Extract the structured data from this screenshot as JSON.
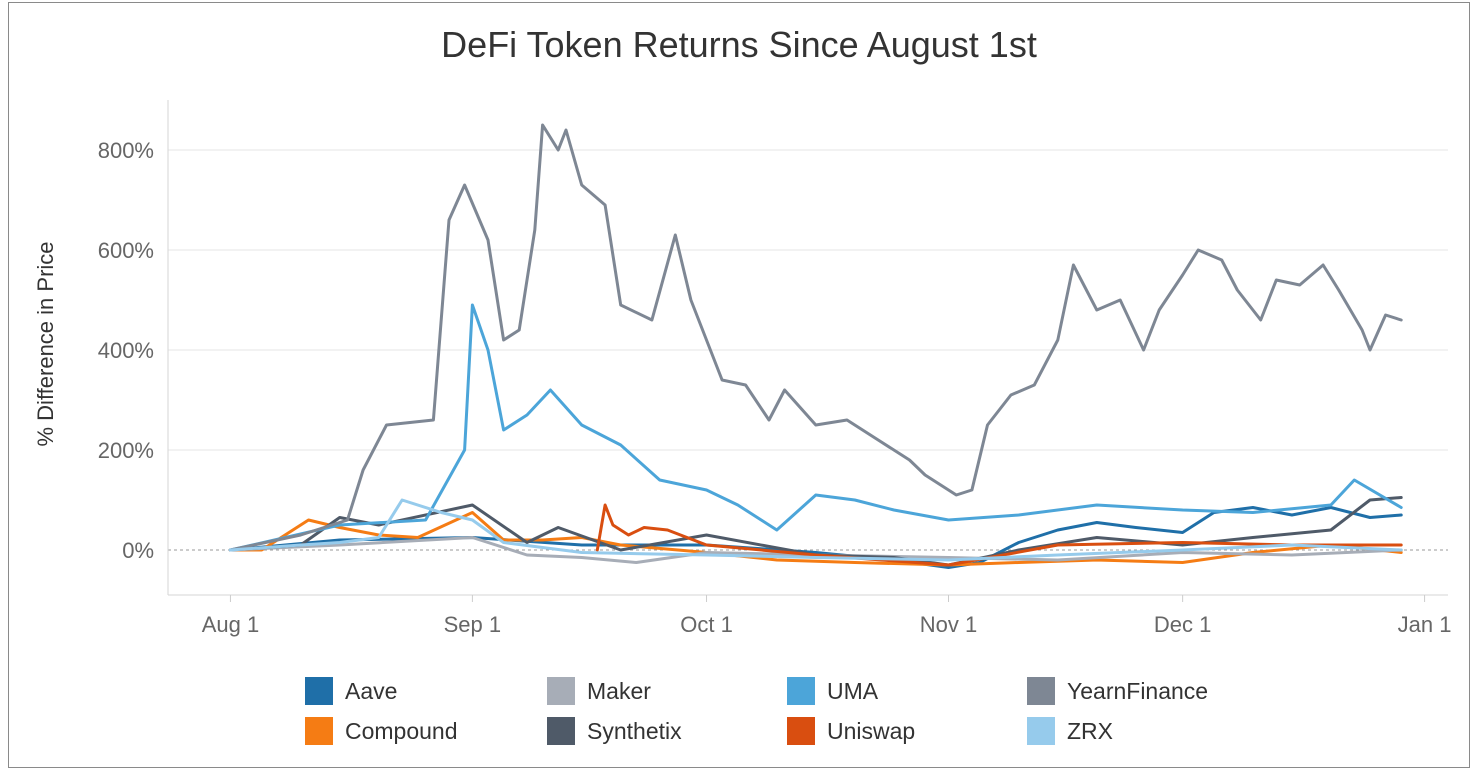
{
  "title": "DeFi Token Returns Since August 1st",
  "chart_data": {
    "type": "line",
    "title": "DeFi Token Returns Since August 1st",
    "ylabel": "% Difference in Price",
    "xlabel": "",
    "x_ticks": [
      "Aug 1",
      "Sep 1",
      "Oct 1",
      "Nov 1",
      "Dec 1",
      "Jan 1"
    ],
    "y_ticks": [
      "0%",
      "200%",
      "400%",
      "600%",
      "800%"
    ],
    "x_range": [
      "2020-07-24",
      "2021-01-04"
    ],
    "ylim": [
      -90,
      900
    ],
    "grid": "horizontal",
    "zero_line": "dashed",
    "legend_position": "bottom",
    "x_unit": "date",
    "series": [
      {
        "name": "Aave",
        "color": "#1f6fa8",
        "x": [
          "2020-08-01",
          "2020-08-15",
          "2020-09-01",
          "2020-09-15",
          "2020-10-01",
          "2020-10-15",
          "2020-10-25",
          "2020-11-01",
          "2020-11-05",
          "2020-11-10",
          "2020-11-15",
          "2020-11-20",
          "2020-11-25",
          "2020-12-01",
          "2020-12-05",
          "2020-12-10",
          "2020-12-15",
          "2020-12-20",
          "2020-12-25",
          "2020-12-29"
        ],
        "values": [
          0,
          20,
          25,
          10,
          10,
          -5,
          -20,
          -35,
          -25,
          15,
          40,
          55,
          45,
          35,
          75,
          85,
          70,
          85,
          65,
          70
        ]
      },
      {
        "name": "Compound",
        "color": "#f57c14",
        "x": [
          "2020-08-01",
          "2020-08-05",
          "2020-08-11",
          "2020-08-15",
          "2020-08-20",
          "2020-08-25",
          "2020-09-01",
          "2020-09-05",
          "2020-09-10",
          "2020-09-15",
          "2020-09-20",
          "2020-10-01",
          "2020-10-10",
          "2020-10-20",
          "2020-11-01",
          "2020-11-10",
          "2020-11-20",
          "2020-12-01",
          "2020-12-10",
          "2020-12-20",
          "2020-12-29"
        ],
        "values": [
          0,
          0,
          60,
          45,
          30,
          25,
          75,
          20,
          20,
          25,
          10,
          -5,
          -20,
          -25,
          -30,
          -25,
          -20,
          -25,
          -5,
          10,
          -5
        ]
      },
      {
        "name": "Maker",
        "color": "#a7adb7",
        "x": [
          "2020-08-01",
          "2020-08-15",
          "2020-09-01",
          "2020-09-08",
          "2020-09-15",
          "2020-09-22",
          "2020-10-01",
          "2020-10-15",
          "2020-11-01",
          "2020-11-15",
          "2020-12-01",
          "2020-12-15",
          "2020-12-29"
        ],
        "values": [
          0,
          10,
          25,
          -10,
          -15,
          -25,
          -5,
          -10,
          -15,
          -20,
          -5,
          -10,
          0
        ]
      },
      {
        "name": "Synthetix",
        "color": "#4f5a68",
        "x": [
          "2020-08-01",
          "2020-08-10",
          "2020-08-15",
          "2020-08-20",
          "2020-09-01",
          "2020-09-08",
          "2020-09-12",
          "2020-09-20",
          "2020-10-01",
          "2020-10-15",
          "2020-10-25",
          "2020-11-01",
          "2020-11-10",
          "2020-11-20",
          "2020-12-01",
          "2020-12-10",
          "2020-12-20",
          "2020-12-25",
          "2020-12-29"
        ],
        "values": [
          0,
          10,
          65,
          50,
          90,
          15,
          45,
          0,
          30,
          -10,
          -15,
          -30,
          0,
          25,
          10,
          25,
          40,
          100,
          105
        ]
      },
      {
        "name": "UMA",
        "color": "#4ca5d9",
        "x": [
          "2020-08-01",
          "2020-08-15",
          "2020-08-26",
          "2020-08-31",
          "2020-09-01",
          "2020-09-03",
          "2020-09-05",
          "2020-09-08",
          "2020-09-11",
          "2020-09-15",
          "2020-09-20",
          "2020-09-25",
          "2020-10-01",
          "2020-10-05",
          "2020-10-08",
          "2020-10-10",
          "2020-10-15",
          "2020-10-20",
          "2020-10-25",
          "2020-11-01",
          "2020-11-10",
          "2020-11-20",
          "2020-12-01",
          "2020-12-10",
          "2020-12-20",
          "2020-12-23",
          "2020-12-29"
        ],
        "values": [
          0,
          50,
          60,
          200,
          490,
          400,
          240,
          270,
          320,
          250,
          210,
          140,
          120,
          90,
          60,
          40,
          110,
          100,
          80,
          60,
          70,
          90,
          80,
          75,
          90,
          140,
          85
        ]
      },
      {
        "name": "Uniswap",
        "color": "#d94e10",
        "x": [
          "2020-09-17",
          "2020-09-18",
          "2020-09-19",
          "2020-09-21",
          "2020-09-23",
          "2020-09-26",
          "2020-10-01",
          "2020-10-15",
          "2020-11-01",
          "2020-11-15",
          "2020-12-01",
          "2020-12-15",
          "2020-12-29"
        ],
        "values": [
          0,
          90,
          50,
          30,
          45,
          40,
          10,
          -10,
          -30,
          10,
          15,
          10,
          10
        ]
      },
      {
        "name": "YearnFinance",
        "color": "#7e8794",
        "x": [
          "2020-08-01",
          "2020-08-10",
          "2020-08-16",
          "2020-08-18",
          "2020-08-21",
          "2020-08-27",
          "2020-08-29",
          "2020-08-31",
          "2020-09-03",
          "2020-09-05",
          "2020-09-07",
          "2020-09-09",
          "2020-09-10",
          "2020-09-12",
          "2020-09-13",
          "2020-09-15",
          "2020-09-18",
          "2020-09-20",
          "2020-09-24",
          "2020-09-27",
          "2020-09-29",
          "2020-10-03",
          "2020-10-06",
          "2020-10-09",
          "2020-10-11",
          "2020-10-15",
          "2020-10-19",
          "2020-10-23",
          "2020-10-27",
          "2020-10-29",
          "2020-10-31",
          "2020-11-02",
          "2020-11-04",
          "2020-11-06",
          "2020-11-09",
          "2020-11-12",
          "2020-11-15",
          "2020-11-17",
          "2020-11-20",
          "2020-11-23",
          "2020-11-26",
          "2020-11-28",
          "2020-12-01",
          "2020-12-03",
          "2020-12-06",
          "2020-12-08",
          "2020-12-11",
          "2020-12-13",
          "2020-12-16",
          "2020-12-19",
          "2020-12-21",
          "2020-12-24",
          "2020-12-25",
          "2020-12-27",
          "2020-12-29"
        ],
        "values": [
          0,
          30,
          60,
          160,
          250,
          260,
          660,
          730,
          620,
          420,
          440,
          640,
          850,
          800,
          840,
          730,
          690,
          490,
          460,
          630,
          500,
          340,
          330,
          260,
          320,
          250,
          260,
          220,
          180,
          150,
          130,
          110,
          120,
          250,
          310,
          330,
          420,
          570,
          480,
          500,
          400,
          480,
          550,
          600,
          580,
          520,
          460,
          540,
          530,
          570,
          520,
          440,
          400,
          470,
          460
        ]
      },
      {
        "name": "ZRX",
        "color": "#96cbec",
        "x": [
          "2020-08-01",
          "2020-08-10",
          "2020-08-15",
          "2020-08-20",
          "2020-08-23",
          "2020-08-28",
          "2020-09-01",
          "2020-09-05",
          "2020-09-10",
          "2020-09-15",
          "2020-10-01",
          "2020-10-15",
          "2020-11-01",
          "2020-11-15",
          "2020-12-01",
          "2020-12-15",
          "2020-12-29"
        ],
        "values": [
          0,
          10,
          15,
          25,
          100,
          75,
          60,
          15,
          5,
          -5,
          -10,
          -15,
          -20,
          -10,
          0,
          10,
          0
        ]
      }
    ]
  }
}
